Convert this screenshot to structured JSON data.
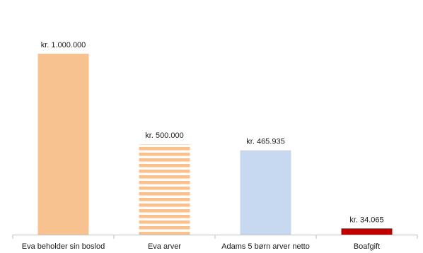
{
  "chart_data": {
    "type": "bar",
    "title": "",
    "xlabel": "",
    "ylabel": "",
    "ylim": [
      0,
      1000000
    ],
    "grid": false,
    "legend": "none",
    "categories": [
      "Eva beholder sin boslod",
      "Eva arver",
      "Adams 5 børn arver netto",
      "Boafgift"
    ],
    "values": [
      1000000,
      500000,
      465935,
      34065
    ],
    "data_labels": [
      "kr. 1.000.000",
      "kr. 500.000",
      "kr. 465.935",
      "kr. 34.065"
    ],
    "bar_styles": [
      {
        "fill": "#f8c190",
        "pattern": "solid"
      },
      {
        "fill": "#f8c190",
        "pattern": "horizontal-stripes"
      },
      {
        "fill": "#c6d9f1",
        "pattern": "solid"
      },
      {
        "fill": "#c00000",
        "pattern": "solid"
      }
    ]
  }
}
